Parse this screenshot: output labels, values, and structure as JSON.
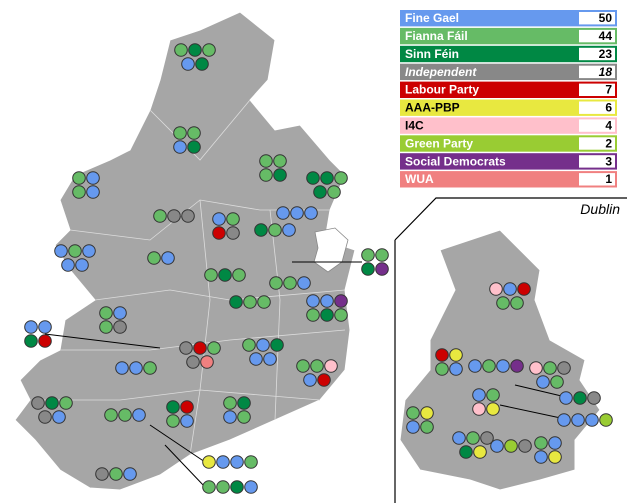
{
  "legend": [
    {
      "party": "Fine Gael",
      "seats": 50,
      "color": "#6699ee",
      "text_color": "#ffffff"
    },
    {
      "party": "Fianna Fáil",
      "seats": 44,
      "color": "#66bb66",
      "text_color": "#ffffff"
    },
    {
      "party": "Sinn Féin",
      "seats": 23,
      "color": "#008844",
      "text_color": "#ffffff"
    },
    {
      "party": "Independent",
      "seats": 18,
      "color": "#888888",
      "text_color": "#ffffff"
    },
    {
      "party": "Labour Party",
      "seats": 7,
      "color": "#cc0000",
      "text_color": "#ffffff"
    },
    {
      "party": "AAA-PBP",
      "seats": 6,
      "color": "#e8e840",
      "text_color": "#000000"
    },
    {
      "party": "I4C",
      "seats": 4,
      "color": "#ffc0cb",
      "text_color": "#000000"
    },
    {
      "party": "Green Party",
      "seats": 2,
      "color": "#99cc33",
      "text_color": "#ffffff"
    },
    {
      "party": "Social Democrats",
      "seats": 3,
      "color": "#752f8b",
      "text_color": "#ffffff"
    },
    {
      "party": "WUA",
      "seats": 1,
      "color": "#f08080",
      "text_color": "#ffffff"
    }
  ],
  "inset_label": "Dublin"
}
